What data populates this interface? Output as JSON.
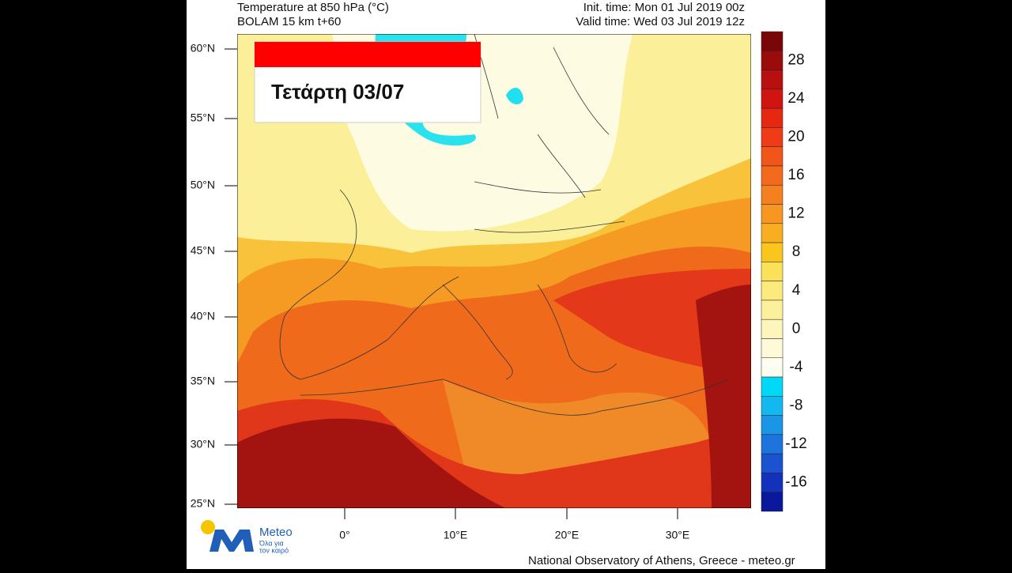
{
  "header": {
    "title": "Temperature at 850 hPa (°C)",
    "model": "BOLAM 15 km t+60",
    "init_time": "Init. time: Mon 01 Jul 2019 00z",
    "valid_time": "Valid time: Wed 03 Jul 2019 12z"
  },
  "overlay": {
    "day_label": "Τετάρτη 03/07"
  },
  "map": {
    "lat_labels": [
      "60°N",
      "55°N",
      "50°N",
      "45°N",
      "40°N",
      "35°N",
      "30°N",
      "25°N"
    ],
    "lon_labels": [
      "0°",
      "10°E",
      "20°E",
      "30°E"
    ]
  },
  "colorbar": {
    "labels": [
      28,
      24,
      20,
      16,
      12,
      8,
      4,
      0,
      -4,
      -8,
      -12,
      -16
    ]
  },
  "logo": {
    "name": "Meteo",
    "tagline_1": "Όλα για",
    "tagline_2": "τον καιρό"
  },
  "footer": {
    "credit": "National Observatory of Athens, Greece - meteo.gr"
  }
}
